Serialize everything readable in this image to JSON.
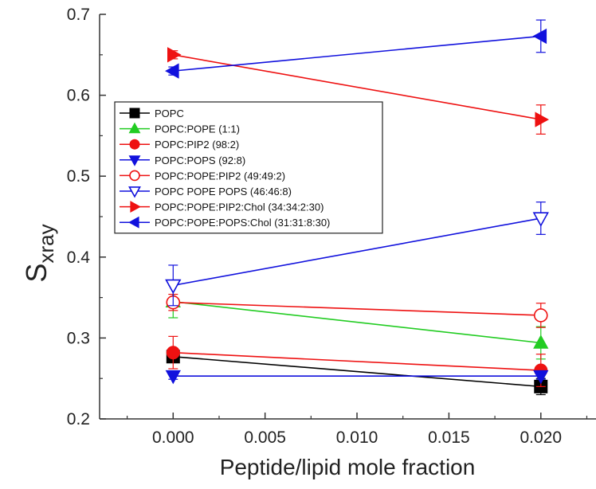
{
  "chart_data": {
    "type": "scatter",
    "title": "",
    "xlabel": "Peptide/lipid mole fraction",
    "ylabel_main": "S",
    "ylabel_sub": "xray",
    "xlim": [
      -0.004,
      0.023
    ],
    "ylim": [
      0.2,
      0.7
    ],
    "xticks": [
      0.0,
      0.005,
      0.01,
      0.015,
      0.02
    ],
    "xtick_labels": [
      "0.000",
      "0.005",
      "0.010",
      "0.015",
      "0.020"
    ],
    "yticks": [
      0.2,
      0.3,
      0.4,
      0.5,
      0.6,
      0.7
    ],
    "ytick_labels": [
      "0.2",
      "0.3",
      "0.4",
      "0.5",
      "0.6",
      "0.7"
    ],
    "grid": false,
    "legend_position": "upper-left",
    "series": [
      {
        "name": "POPC",
        "legend_label": "POPC",
        "color": "#000000",
        "marker": "square",
        "filled": true,
        "x": [
          0.0,
          0.02
        ],
        "y": [
          0.277,
          0.24
        ],
        "yerr": [
          0.005,
          0.01
        ]
      },
      {
        "name": "POPC:POPE (1:1)",
        "legend_label": "POPC:POPE (1:1)",
        "color": "#22cc22",
        "marker": "triangle-up",
        "filled": true,
        "x": [
          0.0,
          0.02
        ],
        "y": [
          0.345,
          0.294
        ],
        "yerr": [
          0.02,
          0.02
        ]
      },
      {
        "name": "POPC:PIP2 (98:2)",
        "legend_label": "POPC:PIP2   (98:2)",
        "color": "#ee1111",
        "marker": "circle",
        "filled": true,
        "x": [
          0.0,
          0.02
        ],
        "y": [
          0.282,
          0.26
        ],
        "yerr": [
          0.02,
          0.02
        ]
      },
      {
        "name": "POPC:POPS (92:8)",
        "legend_label": "POPC:POPS (92:8)",
        "color": "#1111dd",
        "marker": "triangle-down",
        "filled": true,
        "x": [
          0.0,
          0.02
        ],
        "y": [
          0.253,
          0.253
        ],
        "yerr": [
          0.004,
          0.004
        ]
      },
      {
        "name": "POPC:POPE:PIP2 (49:49:2)",
        "legend_label": "POPC:POPE:PIP2   (49:49:2)",
        "color": "#ee1111",
        "marker": "circle",
        "filled": false,
        "x": [
          0.0,
          0.02
        ],
        "y": [
          0.344,
          0.328
        ],
        "yerr": [
          0.01,
          0.015
        ]
      },
      {
        "name": "POPC POPE POPS (46:46:8)",
        "legend_label": "POPC POPE POPS (46:46:8)",
        "color": "#1111dd",
        "marker": "triangle-down",
        "filled": false,
        "x": [
          0.0,
          0.02
        ],
        "y": [
          0.365,
          0.448
        ],
        "yerr": [
          0.025,
          0.02
        ]
      },
      {
        "name": "POPC:POPE:PIP2:Chol (34:34:2:30)",
        "legend_label": "POPC:POPE:PIP2:Chol   (34:34:2:30)",
        "color": "#ee1111",
        "marker": "triangle-right",
        "filled": true,
        "x": [
          0.0,
          0.02
        ],
        "y": [
          0.65,
          0.57
        ],
        "yerr": [
          0.005,
          0.018
        ]
      },
      {
        "name": "POPC:POPE:POPS:Chol (31:31:8:30)",
        "legend_label": "POPC:POPE:POPS:Chol (31:31:8:30)",
        "color": "#1111dd",
        "marker": "triangle-left",
        "filled": true,
        "x": [
          0.0,
          0.02
        ],
        "y": [
          0.63,
          0.673
        ],
        "yerr": [
          0.005,
          0.02
        ]
      }
    ]
  }
}
